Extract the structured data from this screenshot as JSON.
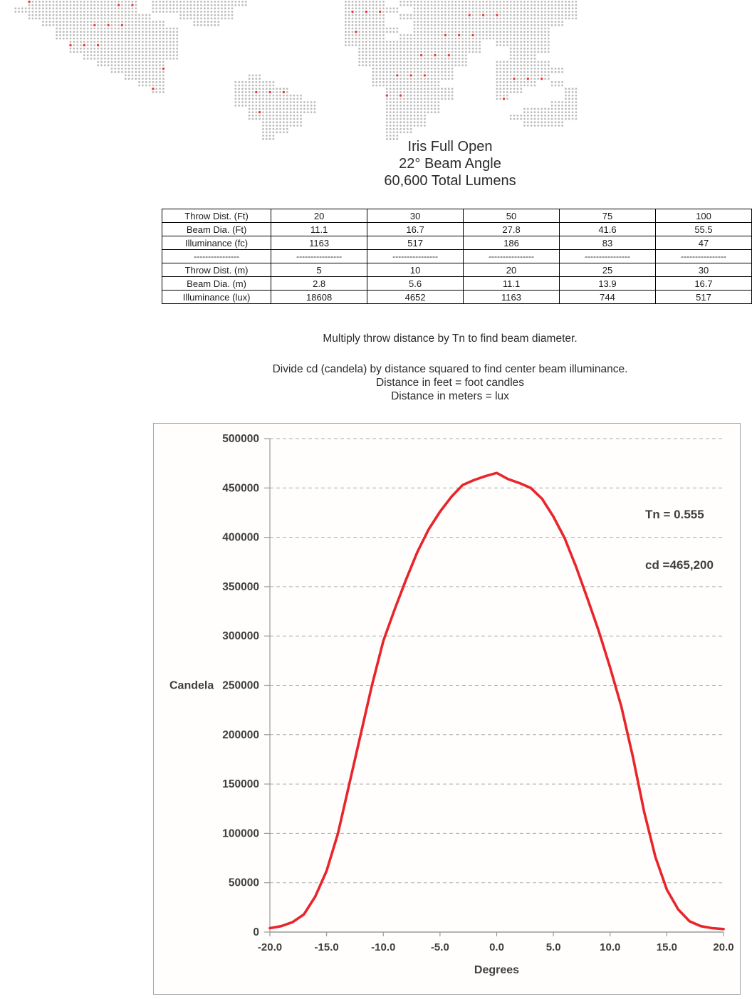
{
  "title": {
    "line1": "Iris Full Open",
    "line2": "22° Beam Angle",
    "line3": "60,600 Total Lumens"
  },
  "table": {
    "rows": [
      {
        "label": "Throw Dist. (Ft)",
        "values": [
          "20",
          "30",
          "50",
          "75",
          "100"
        ]
      },
      {
        "label": "Beam Dia. (Ft)",
        "values": [
          "11.1",
          "16.7",
          "27.8",
          "41.6",
          "55.5"
        ]
      },
      {
        "label": "Illuminance (fc)",
        "values": [
          "1163",
          "517",
          "186",
          "83",
          "47"
        ]
      },
      {
        "label": "----------------",
        "values": [
          "----------------",
          "----------------",
          "----------------",
          "----------------",
          "----------------"
        ]
      },
      {
        "label": "Throw Dist. (m)",
        "values": [
          "5",
          "10",
          "20",
          "25",
          "30"
        ]
      },
      {
        "label": "Beam Dia. (m)",
        "values": [
          "2.8",
          "5.6",
          "11.1",
          "13.9",
          "16.7"
        ]
      },
      {
        "label": "Illuminance (lux)",
        "values": [
          "18608",
          "4652",
          "1163",
          "744",
          "517"
        ]
      }
    ]
  },
  "notes": {
    "line1": "Multiply throw distance by Tn to find beam diameter.",
    "line2": "Divide cd (candela) by distance squared to find center beam illuminance.",
    "line3": "Distance in feet = foot candles",
    "line4": "Distance in meters = lux"
  },
  "watermark": {
    "kind": "dotted-world-map",
    "dot_color": "#bcbcbc",
    "accent_dot_color": "#e8393b"
  },
  "chart_data": {
    "type": "line",
    "title": "",
    "xlabel": "Degrees",
    "ylabel": "Candela",
    "xlim": [
      -20,
      20
    ],
    "ylim": [
      0,
      500000
    ],
    "x_ticks": [
      "-20.0",
      "-15.0",
      "-10.0",
      "-5.0",
      "0.0",
      "5.0",
      "10.0",
      "15.0",
      "20.0"
    ],
    "y_ticks": [
      "0",
      "50000",
      "100000",
      "150000",
      "200000",
      "250000",
      "300000",
      "350000",
      "400000",
      "450000",
      "500000"
    ],
    "grid": "horizontal-dashed",
    "legend": "none",
    "line_color": "#e8252a",
    "axis_color": "#9a9a9a",
    "grid_color": "#ababab",
    "text_color": "#3f3f3f",
    "annotations": [
      {
        "id": "tn",
        "text": "Tn = 0.555"
      },
      {
        "id": "cd",
        "text": "cd =465,200"
      }
    ],
    "series": [
      {
        "name": "candela-vs-degrees",
        "x": [
          -20,
          -19,
          -18,
          -17,
          -16,
          -15,
          -14,
          -13,
          -12,
          -11,
          -10,
          -9,
          -8,
          -7,
          -6,
          -5,
          -4,
          -3,
          -2,
          -1,
          0,
          1,
          2,
          3,
          4,
          5,
          6,
          7,
          8,
          9,
          10,
          11,
          12,
          13,
          14,
          15,
          16,
          17,
          18,
          19,
          20
        ],
        "y": [
          4000,
          6000,
          10000,
          18000,
          36000,
          62000,
          100000,
          150000,
          200000,
          250000,
          295000,
          327000,
          357000,
          385000,
          408000,
          426000,
          441000,
          453000,
          458000,
          462000,
          465200,
          459000,
          455000,
          450000,
          439000,
          421000,
          399000,
          370000,
          338000,
          305000,
          268000,
          228000,
          178000,
          122000,
          76000,
          43000,
          23000,
          11000,
          6000,
          4000,
          3000
        ]
      }
    ]
  }
}
